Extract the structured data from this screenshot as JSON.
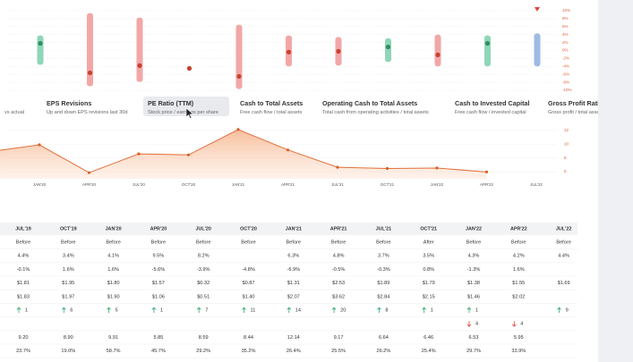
{
  "surprise_chart": {
    "ylim": [
      -10,
      10
    ],
    "yticks": [
      {
        "value": 10,
        "label": "10%"
      },
      {
        "value": 8,
        "label": "8%"
      },
      {
        "value": 6,
        "label": "6%"
      },
      {
        "value": 4,
        "label": "4%"
      },
      {
        "value": 2,
        "label": "2%"
      },
      {
        "value": 0,
        "label": "0%"
      },
      {
        "value": -2,
        "label": "-2%"
      },
      {
        "value": -4,
        "label": "-4%"
      },
      {
        "value": -6,
        "label": "-6%"
      },
      {
        "value": -8,
        "label": "-8%"
      },
      {
        "value": -10,
        "label": "-10%"
      }
    ],
    "columns": [
      {
        "high": 3.8,
        "low": -3.6,
        "actual": 1.8,
        "color": "#8fd6b8",
        "dot_color": "#2f8f5f"
      },
      {
        "high": 9.4,
        "low": -9.0,
        "actual": -5.6,
        "color": "#f2a7a7",
        "dot_color": "#c8412f"
      },
      {
        "high": 8.3,
        "low": -7.9,
        "actual": -3.8,
        "color": "#f2a7a7",
        "dot_color": "#c8412f"
      },
      {
        "high": null,
        "low": null,
        "actual": -4.5,
        "color": "#f2a7a7",
        "dot_color": "#c8412f"
      },
      {
        "high": 6.5,
        "low": -9.7,
        "actual": -6.5,
        "color": "#f2a7a7",
        "dot_color": "#c8412f"
      },
      {
        "high": 3.8,
        "low": -4.0,
        "actual": -0.4,
        "color": "#f2a7a7",
        "dot_color": "#c8412f"
      },
      {
        "high": 3.4,
        "low": -3.8,
        "actual": -0.2,
        "color": "#f2a7a7",
        "dot_color": "#c8412f"
      },
      {
        "high": 3.1,
        "low": -2.9,
        "actual": 0.9,
        "color": "#8fd6b8",
        "dot_color": "#2f8f5f"
      },
      {
        "high": 4.0,
        "low": -4.0,
        "actual": -1.1,
        "color": "#f2a7a7",
        "dot_color": "#c8412f"
      },
      {
        "high": 3.8,
        "low": -4.0,
        "actual": 1.8,
        "color": "#8fd6b8",
        "dot_color": "#2f8f5f"
      },
      {
        "high": 4.3,
        "low": -4.0,
        "actual": null,
        "color": "#9dbbe3",
        "dot_color": "#4a78b8"
      }
    ]
  },
  "tabs": [
    {
      "subtitle": "vs actual"
    },
    {
      "title": "EPS Revisions",
      "subtitle": "Up and down EPS revisions last 30d"
    },
    {
      "title": "PE Ratio (TTM)",
      "subtitle": "Stock price / earnings per share"
    },
    {
      "title": "Cash to Total Assets",
      "subtitle": "Free cash flow / total assets"
    },
    {
      "title": "Operating Cash to Total Assets",
      "subtitle": "Total cash from operating activities / total assets"
    },
    {
      "title": "Cash to Invested Capital",
      "subtitle": "Free cash flow / invested capital"
    },
    {
      "title": "Gross Profit Ratio",
      "subtitle": "Gross profit / total assets"
    }
  ],
  "pe_chart": {
    "ylim": [
      5,
      13
    ],
    "yticks": [
      12,
      10,
      8,
      6
    ],
    "x_labels": [
      "JAN'20",
      "APR'20",
      "JUL'20",
      "OCT'20",
      "JAN'21",
      "APR'21",
      "JUL'21",
      "OCT'21",
      "JAN'22",
      "APR'22",
      "JUL'22"
    ]
  },
  "table": {
    "columns": [
      "JUL'19",
      "OCT'19",
      "JAN'20",
      "APR'20",
      "JUL'20",
      "OCT'20",
      "JAN'21",
      "APR'21",
      "JUL'21",
      "OCT'21",
      "JAN'22",
      "APR'22",
      "JUL'22"
    ],
    "rows": [
      {
        "cells": [
          "Before",
          "Before",
          "Before",
          "Before",
          "Before",
          "Before",
          "Before",
          "Before",
          "Before",
          "After",
          "Before",
          "Before",
          "Before"
        ]
      },
      {
        "cells": [
          "4.4%",
          "3.4%",
          "4.1%",
          "9.5%",
          "8.2%",
          null,
          "6.3%",
          "4.8%",
          "3.7%",
          "3.5%",
          "4.3%",
          "4.2%",
          "4.4%"
        ]
      },
      {
        "cells": [
          "-0.1%",
          "1.6%",
          "1.6%",
          "-5.6%",
          "-3.9%",
          "-4.8%",
          "-6.9%",
          "-0.5%",
          "-0.3%",
          "0.8%",
          "-1.3%",
          "1.6%",
          null
        ],
        "colors": [
          "#e0453a",
          "#2eaa6e",
          "#2eaa6e",
          "#e0453a",
          "#e0453a",
          "#e0453a",
          "#e0453a",
          "#e0453a",
          "#e0453a",
          "#2eaa6e",
          "#e0453a",
          "#2eaa6e",
          null
        ]
      },
      {
        "cells": [
          "$1.81",
          "$1.95",
          "$1.80",
          "$1.57",
          "$0.32",
          "$0.87",
          "$1.31",
          "$2.53",
          "$1.89",
          "$1.79",
          "$1.38",
          "$1.55",
          "$1.69"
        ]
      },
      {
        "cells": [
          "$1.83",
          "$1.97",
          "$1.90",
          "$1.06",
          "$0.51",
          "$1.40",
          "$2.07",
          "$3.62",
          "$2.84",
          "$2.15",
          "$1.46",
          "$2.02",
          null
        ],
        "colors": [
          "#2eaa6e",
          "#2eaa6e",
          "#2eaa6e",
          "#e0453a",
          "#2eaa6e",
          "#2eaa6e",
          "#2eaa6e",
          "#2eaa6e",
          "#2eaa6e",
          "#2eaa6e",
          "#2eaa6e",
          "#2eaa6e",
          null
        ]
      },
      {
        "arrow": "up",
        "cells": [
          1,
          6,
          5,
          1,
          7,
          11,
          14,
          20,
          8,
          1,
          1,
          null,
          9
        ]
      },
      {
        "arrow": "down",
        "cells": [
          null,
          null,
          null,
          null,
          null,
          null,
          null,
          null,
          null,
          null,
          4,
          4,
          null
        ]
      },
      {
        "cells": [
          9.2,
          8.9,
          9.91,
          5.85,
          8.59,
          8.44,
          12.14,
          9.17,
          6.64,
          6.46,
          6.53,
          5.95,
          null
        ],
        "value_labels": [
          "9.20",
          "8.90",
          "9.91",
          "5.85",
          "8.59",
          "8.44",
          "12.14",
          "9.17",
          "6.64",
          "6.46",
          "6.53",
          "5.95",
          null
        ]
      },
      {
        "cells": [
          "23.7%",
          "19.0%",
          "58.7%",
          "45.7%",
          "29.2%",
          "35.2%",
          "26.4%",
          "25.5%",
          "26.2%",
          "25.4%",
          "29.7%",
          "33.9%",
          null
        ]
      }
    ]
  }
}
